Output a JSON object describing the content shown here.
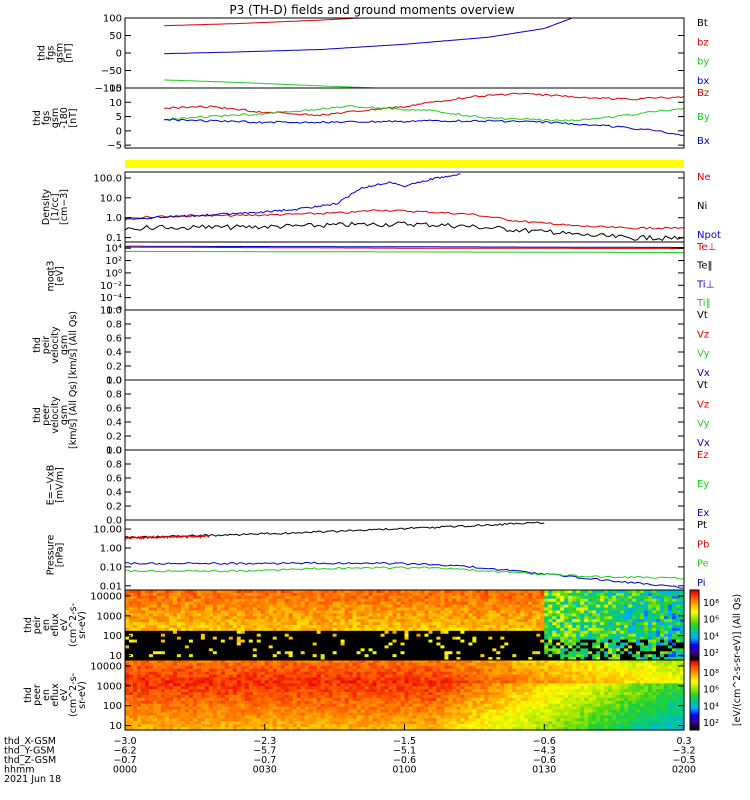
{
  "title": "P3 (TH-D) fields and ground moments overview",
  "colors": {
    "black": "#000000",
    "red": "#dd0000",
    "green": "#22cc22",
    "blue": "#0000cc",
    "yellow": "#ffff00"
  },
  "chart_data": [
    {
      "type": "line",
      "ylabel": [
        "thd",
        "fgs",
        "gsm",
        "[nT]"
      ],
      "ylim": [
        -100,
        100
      ],
      "yticks": [
        "100",
        "50",
        "0",
        "−50",
        "−100"
      ],
      "ytick_values": [
        100,
        50,
        0,
        -50,
        -100
      ],
      "legend": [
        {
          "name": "Bt",
          "color": "black"
        },
        {
          "name": "bz",
          "color": "red"
        },
        {
          "name": "by",
          "color": "green"
        },
        {
          "name": "bx",
          "color": "blue"
        }
      ],
      "series": [
        {
          "name": "bz",
          "color": "red",
          "x": [
            0.07,
            0.2,
            0.35,
            0.42
          ],
          "y": [
            78,
            84,
            94,
            100
          ]
        },
        {
          "name": "by",
          "color": "green",
          "x": [
            0.07,
            0.2,
            0.35,
            0.45
          ],
          "y": [
            -77,
            -84,
            -94,
            -100
          ]
        },
        {
          "name": "bx",
          "color": "blue",
          "x": [
            0.07,
            0.2,
            0.35,
            0.5,
            0.65,
            0.75,
            0.8
          ],
          "y": [
            -2,
            3,
            10,
            25,
            45,
            70,
            100
          ]
        }
      ]
    },
    {
      "type": "line",
      "ylabel": [
        "thd",
        "fgs",
        "gsm",
        "-180",
        "[nT]"
      ],
      "ylim": [
        -6,
        15
      ],
      "yticks": [
        "15",
        "10",
        "5",
        "0",
        "−5"
      ],
      "ytick_values": [
        15,
        10,
        5,
        0,
        -5
      ],
      "legend": [
        {
          "name": "Bz",
          "color": "red"
        },
        {
          "name": "By",
          "color": "green"
        },
        {
          "name": "Bx",
          "color": "blue"
        }
      ],
      "series": [
        {
          "name": "Bz",
          "color": "red",
          "x": [
            0.07,
            0.15,
            0.25,
            0.35,
            0.5,
            0.62,
            0.7,
            0.8,
            0.9,
            1.0
          ],
          "y": [
            8,
            8.5,
            6.5,
            5.5,
            8.5,
            12,
            13,
            12,
            11,
            12
          ]
        },
        {
          "name": "By",
          "color": "green",
          "x": [
            0.07,
            0.15,
            0.25,
            0.4,
            0.55,
            0.65,
            0.78,
            0.88,
            1.0
          ],
          "y": [
            4,
            5,
            6,
            8.5,
            7,
            4.5,
            3.5,
            5,
            8
          ]
        },
        {
          "name": "Bx",
          "color": "blue",
          "x": [
            0.07,
            0.15,
            0.25,
            0.4,
            0.55,
            0.65,
            0.75,
            0.85,
            0.95,
            1.0
          ],
          "y": [
            4,
            3.5,
            3,
            3,
            3.5,
            3.5,
            3,
            2,
            0,
            -1.5
          ]
        }
      ]
    },
    {
      "type": "line",
      "ylabel": [
        "Density",
        "[1/cc]",
        "[cm−3]"
      ],
      "ylog": true,
      "ylim": [
        0.06,
        200
      ],
      "yticks": [
        "100.0",
        "10.0",
        "1.0",
        "0.1"
      ],
      "ytick_values": [
        100,
        10,
        1,
        0.1
      ],
      "legend": [
        {
          "name": "Ne",
          "color": "red"
        },
        {
          "name": "Ni",
          "color": "black"
        },
        {
          "name": "Npot",
          "color": "blue"
        }
      ],
      "series": [
        {
          "name": "Ne",
          "color": "red",
          "x": [
            0.0,
            0.1,
            0.2,
            0.3,
            0.4,
            0.45,
            0.5,
            0.55,
            0.62,
            0.7,
            0.8,
            0.9,
            1.0
          ],
          "y": [
            1.0,
            1.2,
            1.3,
            1.5,
            1.8,
            2.5,
            2.2,
            1.9,
            1.5,
            0.7,
            0.4,
            0.3,
            0.3
          ]
        },
        {
          "name": "Ni",
          "color": "black",
          "x": [
            0.0,
            0.1,
            0.2,
            0.3,
            0.4,
            0.5,
            0.6,
            0.7,
            0.8,
            0.9,
            1.0
          ],
          "y": [
            0.3,
            0.32,
            0.34,
            0.38,
            0.45,
            0.5,
            0.4,
            0.25,
            0.15,
            0.1,
            0.09
          ]
        },
        {
          "name": "Npot",
          "color": "blue",
          "x": [
            0.0,
            0.1,
            0.2,
            0.3,
            0.38,
            0.42,
            0.47,
            0.5,
            0.55,
            0.6
          ],
          "y": [
            0.8,
            1.2,
            1.6,
            2.5,
            5,
            30,
            60,
            40,
            90,
            150
          ]
        }
      ]
    },
    {
      "type": "line",
      "ylabel": [
        "moqt3",
        "[eV]"
      ],
      "ylog": true,
      "ylim": [
        1e-06,
        100000.0
      ],
      "yticks": [
        "10⁴",
        "10²",
        "10⁰",
        "10⁻²",
        "10⁻⁴",
        "10⁻⁶"
      ],
      "ytick_values": [
        10000,
        100,
        1,
        0.01,
        0.0001,
        1e-06
      ],
      "legend": [
        {
          "name": "Te⊥",
          "color": "red"
        },
        {
          "name": "Te‖",
          "color": "black"
        },
        {
          "name": "Ti⊥",
          "color": "blue"
        },
        {
          "name": "Ti‖",
          "color": "green"
        }
      ],
      "series": [
        {
          "name": "Ti⊥",
          "color": "blue",
          "x": [
            0.0,
            0.5,
            1.0
          ],
          "y": [
            20000,
            17000,
            13000
          ]
        },
        {
          "name": "Te⊥",
          "color": "red",
          "x": [
            0.0,
            0.5,
            1.0
          ],
          "y": [
            15000,
            10000,
            9000
          ]
        },
        {
          "name": "Ti‖",
          "color": "green",
          "x": [
            0.0,
            0.5,
            1.0
          ],
          "y": [
            3000,
            2500,
            2000
          ]
        }
      ]
    },
    {
      "type": "line",
      "ylabel": [
        "thd",
        "peir",
        "velocity",
        "gsm",
        "[km/s] (All Qs)"
      ],
      "ylim": [
        0,
        1
      ],
      "yticks": [
        "1.0",
        "0.8",
        "0.6",
        "0.4",
        "0.2",
        "0.0"
      ],
      "ytick_values": [
        1,
        0.8,
        0.6,
        0.4,
        0.2,
        0
      ],
      "legend": [
        {
          "name": "Vt",
          "color": "black"
        },
        {
          "name": "Vz",
          "color": "red"
        },
        {
          "name": "Vy",
          "color": "green"
        },
        {
          "name": "Vx",
          "color": "blue"
        }
      ],
      "series": []
    },
    {
      "type": "line",
      "ylabel": [
        "thd",
        "peer",
        "velocity",
        "gsm",
        "[km/s] (All Qs)"
      ],
      "ylim": [
        0,
        1
      ],
      "yticks": [
        "1.0",
        "0.8",
        "0.6",
        "0.4",
        "0.2",
        "0.0"
      ],
      "ytick_values": [
        1,
        0.8,
        0.6,
        0.4,
        0.2,
        0
      ],
      "legend": [
        {
          "name": "Vt",
          "color": "black"
        },
        {
          "name": "Vz",
          "color": "red"
        },
        {
          "name": "Vy",
          "color": "green"
        },
        {
          "name": "Vx",
          "color": "blue"
        }
      ],
      "series": []
    },
    {
      "type": "line",
      "ylabel": [
        "E=−VxB",
        "[mV/m]"
      ],
      "ylim": [
        0,
        1
      ],
      "yticks": [
        "1.0",
        "0.8",
        "0.6",
        "0.4",
        "0.2",
        "0.0"
      ],
      "ytick_values": [
        1,
        0.8,
        0.6,
        0.4,
        0.2,
        0
      ],
      "legend": [
        {
          "name": "Ez",
          "color": "red"
        },
        {
          "name": "Ey",
          "color": "green"
        },
        {
          "name": "Ex",
          "color": "blue"
        }
      ],
      "series": []
    },
    {
      "type": "line",
      "ylabel": [
        "Pressure",
        "[nPa]"
      ],
      "ylog": true,
      "ylim": [
        0.006,
        30
      ],
      "yticks": [
        "10.00",
        "1.00",
        "0.10",
        "0.01"
      ],
      "ytick_values": [
        10,
        1,
        0.1,
        0.01
      ],
      "legend": [
        {
          "name": "Pt",
          "color": "black"
        },
        {
          "name": "Pb",
          "color": "red"
        },
        {
          "name": "Pe",
          "color": "green"
        },
        {
          "name": "Pi",
          "color": "blue"
        }
      ],
      "series": [
        {
          "name": "Pt",
          "color": "black",
          "x": [
            0.0,
            0.2,
            0.4,
            0.6,
            0.75
          ],
          "y": [
            3.5,
            5,
            8,
            14,
            22
          ]
        },
        {
          "name": "Pb",
          "color": "red",
          "x": [
            0.0,
            0.15
          ],
          "y": [
            3.4,
            4.2
          ]
        },
        {
          "name": "Pi",
          "color": "blue",
          "x": [
            0.0,
            0.2,
            0.4,
            0.5,
            0.6,
            0.7,
            0.8,
            0.9,
            1.0
          ],
          "y": [
            0.15,
            0.15,
            0.16,
            0.15,
            0.11,
            0.06,
            0.03,
            0.015,
            0.008
          ]
        },
        {
          "name": "Pe",
          "color": "green",
          "x": [
            0.0,
            0.2,
            0.4,
            0.55,
            0.65,
            0.75,
            0.85,
            1.0
          ],
          "y": [
            0.06,
            0.06,
            0.09,
            0.09,
            0.06,
            0.04,
            0.03,
            0.025
          ]
        }
      ]
    },
    {
      "type": "heatmap",
      "ylabel": [
        "thd",
        "peir",
        "en",
        "eflux",
        "eV",
        "(cm^2-s-",
        "sr-eV)"
      ],
      "ylog": true,
      "ylim": [
        6,
        20000
      ],
      "yticks": [
        "10000",
        "1000",
        "100",
        "10"
      ],
      "ytick_values": [
        10000,
        1000,
        100,
        10
      ]
    },
    {
      "type": "heatmap",
      "ylabel": [
        "thd",
        "peer",
        "en",
        "eflux",
        "eV",
        "(cm^2-s-",
        "sr-eV)"
      ],
      "ylog": true,
      "ylim": [
        6,
        20000
      ],
      "yticks": [
        "10000",
        "1000",
        "100",
        "10"
      ],
      "ytick_values": [
        10000,
        1000,
        100,
        10
      ]
    }
  ],
  "colorbar": {
    "label": "[eV/(cm^2-s-sr-eV)] (All Qs)",
    "ticks_top": [
      "10⁸",
      "10⁶",
      "10⁴",
      "10²"
    ],
    "ticks_bottom": [
      "10⁸",
      "10⁶",
      "10⁴",
      "10²"
    ]
  },
  "x_axis": {
    "rows": [
      {
        "name": "thd_X-GSM",
        "values": [
          "−3.0",
          "−2.3",
          "−1.5",
          "−0.6",
          "0.3"
        ]
      },
      {
        "name": "thd_Y-GSM",
        "values": [
          "−6.2",
          "−5.7",
          "−5.1",
          "−4.3",
          "−3.2"
        ]
      },
      {
        "name": "thd_Z-GSM",
        "values": [
          "−0.7",
          "−0.7",
          "−0.6",
          "−0.6",
          "−0.5"
        ]
      },
      {
        "name": "hhmm",
        "values": [
          "0000",
          "0030",
          "0100",
          "0130",
          "0200"
        ]
      }
    ],
    "date": "2021 Jun 18"
  }
}
